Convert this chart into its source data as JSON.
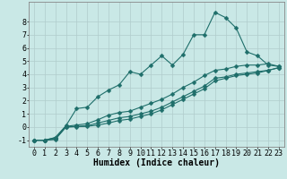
{
  "xlabel": "Humidex (Indice chaleur)",
  "ylabel": "",
  "xlim": [
    -0.5,
    23.5
  ],
  "ylim": [
    -1.5,
    9.5
  ],
  "background_color": "#c9e8e6",
  "grid_color": "#b0cccc",
  "line_color": "#1e6e6a",
  "line1_x": [
    0,
    1,
    2,
    3,
    4,
    5,
    6,
    7,
    8,
    9,
    10,
    11,
    12,
    13,
    14,
    15,
    16,
    17,
    18,
    19,
    20,
    21,
    22,
    23
  ],
  "line1_y": [
    -1,
    -1,
    -0.8,
    0.1,
    1.4,
    1.5,
    2.3,
    2.8,
    3.2,
    4.2,
    4.0,
    4.7,
    5.4,
    4.7,
    5.5,
    7.0,
    7.0,
    8.7,
    8.3,
    7.5,
    5.7,
    5.4,
    4.7,
    4.6
  ],
  "line2_x": [
    0,
    1,
    2,
    3,
    4,
    5,
    6,
    7,
    8,
    9,
    10,
    11,
    12,
    13,
    14,
    15,
    16,
    17,
    18,
    19,
    20,
    21,
    22,
    23
  ],
  "line2_y": [
    -1,
    -1,
    -0.8,
    0.05,
    0.15,
    0.25,
    0.55,
    0.9,
    1.1,
    1.2,
    1.5,
    1.8,
    2.1,
    2.5,
    3.0,
    3.4,
    3.9,
    4.3,
    4.4,
    4.6,
    4.7,
    4.7,
    4.8,
    4.6
  ],
  "line3_x": [
    0,
    1,
    2,
    3,
    4,
    5,
    6,
    7,
    8,
    9,
    10,
    11,
    12,
    13,
    14,
    15,
    16,
    17,
    18,
    19,
    20,
    21,
    22,
    23
  ],
  "line3_y": [
    -1,
    -1,
    -0.9,
    0.0,
    0.05,
    0.1,
    0.3,
    0.5,
    0.7,
    0.8,
    1.0,
    1.2,
    1.5,
    1.9,
    2.3,
    2.7,
    3.1,
    3.7,
    3.8,
    4.0,
    4.1,
    4.2,
    4.3,
    4.5
  ],
  "line4_x": [
    0,
    1,
    2,
    3,
    4,
    5,
    6,
    7,
    8,
    9,
    10,
    11,
    12,
    13,
    14,
    15,
    16,
    17,
    18,
    19,
    20,
    21,
    22,
    23
  ],
  "line4_y": [
    -1,
    -1,
    -0.95,
    0.0,
    0.02,
    0.05,
    0.15,
    0.3,
    0.5,
    0.6,
    0.8,
    1.0,
    1.3,
    1.7,
    2.1,
    2.5,
    2.9,
    3.5,
    3.7,
    3.9,
    4.0,
    4.1,
    4.3,
    4.5
  ],
  "xticks": [
    0,
    1,
    2,
    3,
    4,
    5,
    6,
    7,
    8,
    9,
    10,
    11,
    12,
    13,
    14,
    15,
    16,
    17,
    18,
    19,
    20,
    21,
    22,
    23
  ],
  "yticks": [
    -1,
    0,
    1,
    2,
    3,
    4,
    5,
    6,
    7,
    8
  ],
  "xlabel_fontsize": 7,
  "tick_fontsize": 6,
  "marker_size": 2.5,
  "line_width": 0.8
}
